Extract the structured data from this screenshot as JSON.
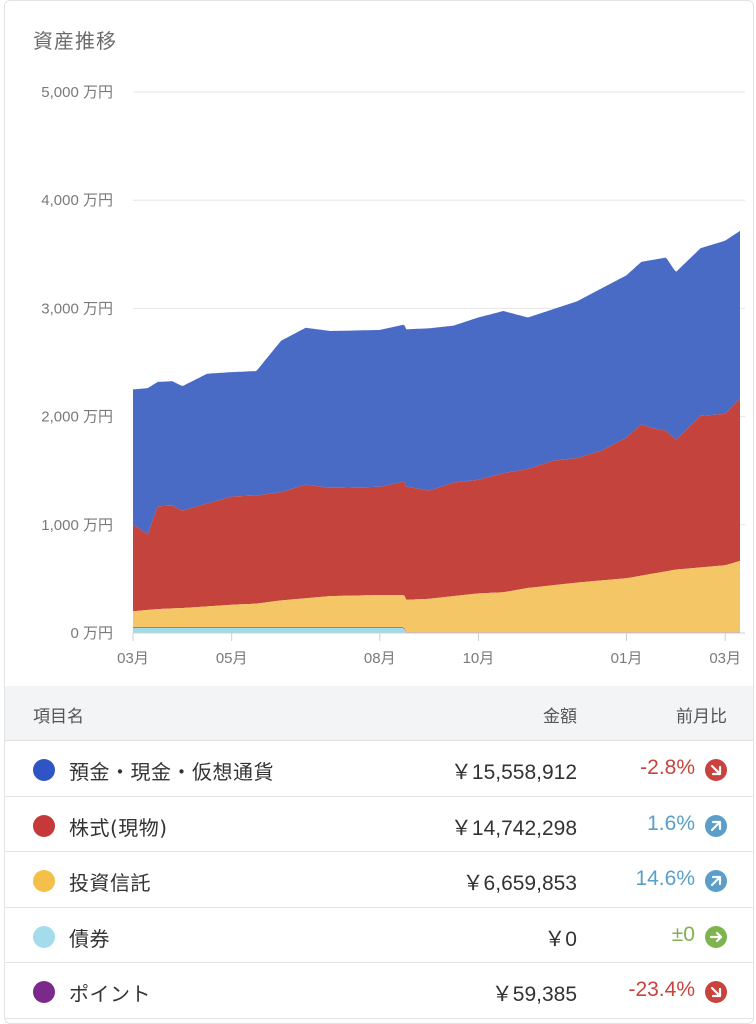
{
  "title": "資産推移",
  "chart_data": {
    "type": "area",
    "stacked": true,
    "y_tick_labels": [
      "0 万円",
      "1,000 万円",
      "2,000 万円",
      "3,000 万円",
      "4,000 万円",
      "5,000 万円"
    ],
    "y_ticks": [
      0,
      1000,
      2000,
      3000,
      4000,
      5000
    ],
    "ylim": [
      0,
      5000
    ],
    "x_tick_labels": [
      "03月",
      "05月",
      "08月",
      "10月",
      "01月",
      "03月"
    ],
    "x_tick_positions": [
      0,
      2,
      5,
      7,
      10,
      12
    ],
    "xlim": [
      0,
      12.3
    ],
    "grid": true,
    "series": [
      {
        "name": "債券",
        "color": "#9adcea",
        "x": [
          0,
          5.5,
          5.52,
          12.3
        ],
        "values": [
          45,
          45,
          0,
          0
        ]
      },
      {
        "name": "ポイント",
        "color": "#7b2a8c",
        "x": [
          0,
          12.3
        ],
        "values": [
          6,
          6
        ]
      },
      {
        "name": "投資信託",
        "color": "#f5c665",
        "x": [
          0,
          0.5,
          1,
          2,
          2.5,
          3,
          4,
          5,
          5.5,
          6,
          7,
          7.5,
          8,
          9,
          10,
          10.5,
          11,
          12,
          12.3
        ],
        "values": [
          150,
          170,
          180,
          210,
          220,
          250,
          290,
          300,
          300,
          310,
          360,
          370,
          410,
          460,
          500,
          540,
          580,
          620,
          660
        ]
      },
      {
        "name": "株式(現物)",
        "color": "#c5433d",
        "x": [
          0,
          0.3,
          0.5,
          0.8,
          1,
          1.5,
          2,
          2.5,
          3,
          3.5,
          4,
          4.5,
          5,
          5.5,
          6,
          6.5,
          7,
          7.5,
          8,
          8.5,
          9,
          9.5,
          10,
          10.3,
          10.5,
          10.8,
          11,
          11.5,
          12,
          12.3
        ],
        "values": [
          800,
          700,
          950,
          950,
          900,
          950,
          1000,
          1000,
          1000,
          1050,
          1000,
          1000,
          1000,
          1050,
          1000,
          1050,
          1050,
          1100,
          1100,
          1150,
          1150,
          1200,
          1300,
          1400,
          1350,
          1300,
          1200,
          1400,
          1400,
          1500
        ]
      },
      {
        "name": "預金・現金・仮想通貨",
        "color": "#4a6bc5",
        "x": [
          0,
          0.3,
          0.5,
          0.8,
          1,
          1.5,
          2,
          2.5,
          3,
          3.5,
          4,
          4.5,
          5,
          5.5,
          6,
          6.5,
          7,
          7.5,
          8,
          8.5,
          9,
          9.5,
          10,
          10.3,
          10.5,
          10.8,
          11,
          11.5,
          12,
          12.3
        ],
        "values": [
          1250,
          1350,
          1150,
          1150,
          1150,
          1200,
          1150,
          1150,
          1400,
          1450,
          1450,
          1450,
          1450,
          1450,
          1500,
          1450,
          1500,
          1500,
          1400,
          1400,
          1450,
          1500,
          1500,
          1500,
          1550,
          1600,
          1550,
          1550,
          1600,
          1550
        ]
      }
    ]
  },
  "table": {
    "headers": {
      "name": "項目名",
      "amount": "金額",
      "change": "前月比"
    },
    "rows": [
      {
        "name": "預金・現金・仮想通貨",
        "amount": "￥15,558,912",
        "change": "-2.8%",
        "dot_color": "#2f55c4",
        "change_color": "#c9433e",
        "arrow_color": "#c9433e",
        "arrow": "down-right-arrow-icon"
      },
      {
        "name": "株式(現物)",
        "amount": "￥14,742,298",
        "change": "1.6%",
        "dot_color": "#c5393a",
        "change_color": "#5a9ec9",
        "arrow_color": "#5a9ec9",
        "arrow": "up-right-arrow-icon"
      },
      {
        "name": "投資信託",
        "amount": "￥6,659,853",
        "change": "14.6%",
        "dot_color": "#f5c04a",
        "change_color": "#5a9ec9",
        "arrow_color": "#5a9ec9",
        "arrow": "up-right-arrow-icon"
      },
      {
        "name": "債券",
        "amount": "￥0",
        "change": "±0",
        "dot_color": "#a4dceb",
        "change_color": "#7fb34d",
        "arrow_color": "#7fb34d",
        "arrow": "right-arrow-icon"
      },
      {
        "name": "ポイント",
        "amount": "￥59,385",
        "change": "-23.4%",
        "dot_color": "#7b2a8c",
        "change_color": "#c9433e",
        "arrow_color": "#c9433e",
        "arrow": "down-right-arrow-icon"
      }
    ]
  }
}
